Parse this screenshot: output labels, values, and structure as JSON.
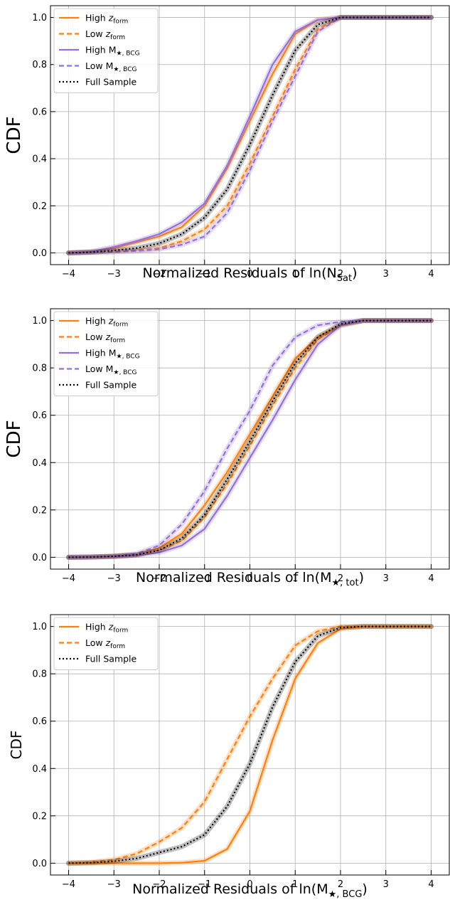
{
  "chart_data": [
    {
      "type": "line",
      "ylabel": "CDF",
      "xlabel": {
        "pre": "Normalized Residuals of ln(",
        "base": "N",
        "sub": "Sat",
        "post": ")"
      },
      "xlim": [
        -4.4,
        4.4
      ],
      "ylim": [
        -0.05,
        1.05
      ],
      "xticks": [
        -4,
        -3,
        -2,
        -1,
        0,
        1,
        2,
        3,
        4
      ],
      "xtick_labels": [
        "−4",
        "−3",
        "−2",
        "−1",
        "0",
        "1",
        "2",
        "3",
        "4"
      ],
      "yticks": [
        0.0,
        0.2,
        0.4,
        0.6,
        0.8,
        1.0
      ],
      "ytick_labels": [
        "0.0",
        "0.2",
        "0.4",
        "0.6",
        "0.8",
        "1.0"
      ],
      "grid": true,
      "legend_position": "top-left",
      "x": [
        -4,
        -3.5,
        -3,
        -2.5,
        -2,
        -1.5,
        -1,
        -0.5,
        0,
        0.5,
        1,
        1.5,
        2,
        2.5,
        3,
        3.5,
        4
      ],
      "series": [
        {
          "label": {
            "pre": "High ",
            "base": "z",
            "italic": true,
            "sub": "form"
          },
          "color": "#ff7f0e",
          "dash": "solid",
          "values": [
            0,
            0.005,
            0.02,
            0.045,
            0.07,
            0.11,
            0.2,
            0.36,
            0.56,
            0.76,
            0.93,
            0.99,
            1.0,
            1.0,
            1.0,
            1.0,
            1.0
          ]
        },
        {
          "label": {
            "pre": "Low ",
            "base": "z",
            "italic": true,
            "sub": "form"
          },
          "color": "#ff7f0e",
          "dash": "dashed",
          "values": [
            0,
            0.002,
            0.005,
            0.01,
            0.02,
            0.05,
            0.1,
            0.2,
            0.38,
            0.58,
            0.78,
            0.95,
            1.0,
            1.0,
            1.0,
            1.0,
            1.0
          ]
        },
        {
          "label": {
            "pre": "High ",
            "base": "M",
            "sub": "★, BCG"
          },
          "color": "#9370db",
          "dash": "solid",
          "values": [
            0,
            0.005,
            0.025,
            0.05,
            0.08,
            0.13,
            0.21,
            0.37,
            0.58,
            0.8,
            0.94,
            0.99,
            1.0,
            1.0,
            1.0,
            1.0,
            1.0
          ]
        },
        {
          "label": {
            "pre": "Low ",
            "base": "M",
            "sub": "★, BCG"
          },
          "color": "#9370db",
          "dash": "dashed",
          "values": [
            0,
            0.002,
            0.004,
            0.008,
            0.015,
            0.035,
            0.07,
            0.17,
            0.35,
            0.56,
            0.75,
            0.94,
            1.0,
            1.0,
            1.0,
            1.0,
            1.0
          ]
        },
        {
          "label": {
            "pre": "Full Sample",
            "base": "",
            "sub": ""
          },
          "color": "#000000",
          "dash": "dotted",
          "values": [
            0,
            0.003,
            0.01,
            0.02,
            0.04,
            0.08,
            0.15,
            0.27,
            0.46,
            0.67,
            0.86,
            0.97,
            1.0,
            1.0,
            1.0,
            1.0,
            1.0
          ]
        }
      ]
    },
    {
      "type": "line",
      "ylabel": "CDF",
      "xlabel": {
        "pre": "Normalized Residuals of ln(",
        "base": "M",
        "sub": "★, tot",
        "post": ")"
      },
      "xlim": [
        -4.4,
        4.4
      ],
      "ylim": [
        -0.05,
        1.05
      ],
      "xticks": [
        -4,
        -3,
        -2,
        -1,
        0,
        1,
        2,
        3,
        4
      ],
      "xtick_labels": [
        "−4",
        "−3",
        "−2",
        "−1",
        "0",
        "1",
        "2",
        "3",
        "4"
      ],
      "yticks": [
        0.0,
        0.2,
        0.4,
        0.6,
        0.8,
        1.0
      ],
      "ytick_labels": [
        "0.0",
        "0.2",
        "0.4",
        "0.6",
        "0.8",
        "1.0"
      ],
      "grid": true,
      "legend_position": "top-left",
      "x": [
        -4,
        -3.5,
        -3,
        -2.5,
        -2,
        -1.5,
        -1,
        -0.5,
        0,
        0.5,
        1,
        1.5,
        2,
        2.5,
        3,
        3.5,
        4
      ],
      "series": [
        {
          "label": {
            "pre": "High ",
            "base": "z",
            "italic": true,
            "sub": "form"
          },
          "color": "#ff7f0e",
          "dash": "solid",
          "values": [
            0,
            0.001,
            0.005,
            0.01,
            0.04,
            0.1,
            0.22,
            0.36,
            0.52,
            0.68,
            0.84,
            0.93,
            0.98,
            1.0,
            1.0,
            1.0,
            1.0
          ]
        },
        {
          "label": {
            "pre": "Low ",
            "base": "z",
            "italic": true,
            "sub": "form"
          },
          "color": "#ff7f0e",
          "dash": "dashed",
          "values": [
            0,
            0.001,
            0.004,
            0.01,
            0.03,
            0.07,
            0.17,
            0.31,
            0.47,
            0.64,
            0.8,
            0.92,
            0.98,
            1.0,
            1.0,
            1.0,
            1.0
          ]
        },
        {
          "label": {
            "pre": "High ",
            "base": "M",
            "sub": "★, BCG"
          },
          "color": "#9370db",
          "dash": "solid",
          "values": [
            0,
            0.001,
            0.003,
            0.008,
            0.02,
            0.05,
            0.12,
            0.26,
            0.42,
            0.58,
            0.75,
            0.9,
            0.98,
            1.0,
            1.0,
            1.0,
            1.0
          ]
        },
        {
          "label": {
            "pre": "Low ",
            "base": "M",
            "sub": "★, BCG"
          },
          "color": "#9370db",
          "dash": "dashed",
          "values": [
            0,
            0.001,
            0.005,
            0.015,
            0.05,
            0.14,
            0.28,
            0.46,
            0.62,
            0.81,
            0.93,
            0.98,
            0.995,
            1.0,
            1.0,
            1.0,
            1.0
          ]
        },
        {
          "label": {
            "pre": "Full Sample",
            "base": "",
            "sub": ""
          },
          "color": "#000000",
          "dash": "dotted",
          "values": [
            0,
            0.001,
            0.004,
            0.01,
            0.03,
            0.08,
            0.18,
            0.33,
            0.49,
            0.66,
            0.82,
            0.93,
            0.985,
            1.0,
            1.0,
            1.0,
            1.0
          ]
        }
      ]
    },
    {
      "type": "line",
      "ylabel": "CDF",
      "xlabel": {
        "pre": "Normalized Residuals of ln(",
        "base": "M",
        "sub": "★, BCG",
        "post": ")"
      },
      "xlim": [
        -4.4,
        4.4
      ],
      "ylim": [
        -0.05,
        1.05
      ],
      "xticks": [
        -4,
        -3,
        -2,
        -1,
        0,
        1,
        2,
        3,
        4
      ],
      "xtick_labels": [
        "−4",
        "−3",
        "−2",
        "−1",
        "0",
        "1",
        "2",
        "3",
        "4"
      ],
      "yticks": [
        0.0,
        0.2,
        0.4,
        0.6,
        0.8,
        1.0
      ],
      "ytick_labels": [
        "0.0",
        "0.2",
        "0.4",
        "0.6",
        "0.8",
        "1.0"
      ],
      "grid": true,
      "legend_position": "top-left",
      "x": [
        -4,
        -3.5,
        -3,
        -2.5,
        -2,
        -1.5,
        -1,
        -0.5,
        0,
        0.5,
        1,
        1.5,
        2,
        2.5,
        3,
        3.5,
        4
      ],
      "series": [
        {
          "label": {
            "pre": "High ",
            "base": "z",
            "italic": true,
            "sub": "form"
          },
          "color": "#ff7f0e",
          "dash": "solid",
          "values": [
            0,
            0,
            0,
            0,
            0,
            0.002,
            0.01,
            0.06,
            0.22,
            0.52,
            0.78,
            0.93,
            0.99,
            1.0,
            1.0,
            1.0,
            1.0
          ]
        },
        {
          "label": {
            "pre": "Low ",
            "base": "z",
            "italic": true,
            "sub": "form"
          },
          "color": "#ff7f0e",
          "dash": "dashed",
          "values": [
            0,
            0.004,
            0.015,
            0.04,
            0.09,
            0.15,
            0.26,
            0.44,
            0.62,
            0.78,
            0.92,
            0.98,
            1.0,
            1.0,
            1.0,
            1.0,
            1.0
          ]
        },
        {
          "label": {
            "pre": "Full Sample",
            "base": "",
            "sub": ""
          },
          "color": "#000000",
          "dash": "dotted",
          "values": [
            0,
            0.002,
            0.008,
            0.02,
            0.045,
            0.07,
            0.12,
            0.24,
            0.42,
            0.66,
            0.85,
            0.96,
            0.995,
            1.0,
            1.0,
            1.0,
            1.0
          ]
        }
      ]
    }
  ]
}
